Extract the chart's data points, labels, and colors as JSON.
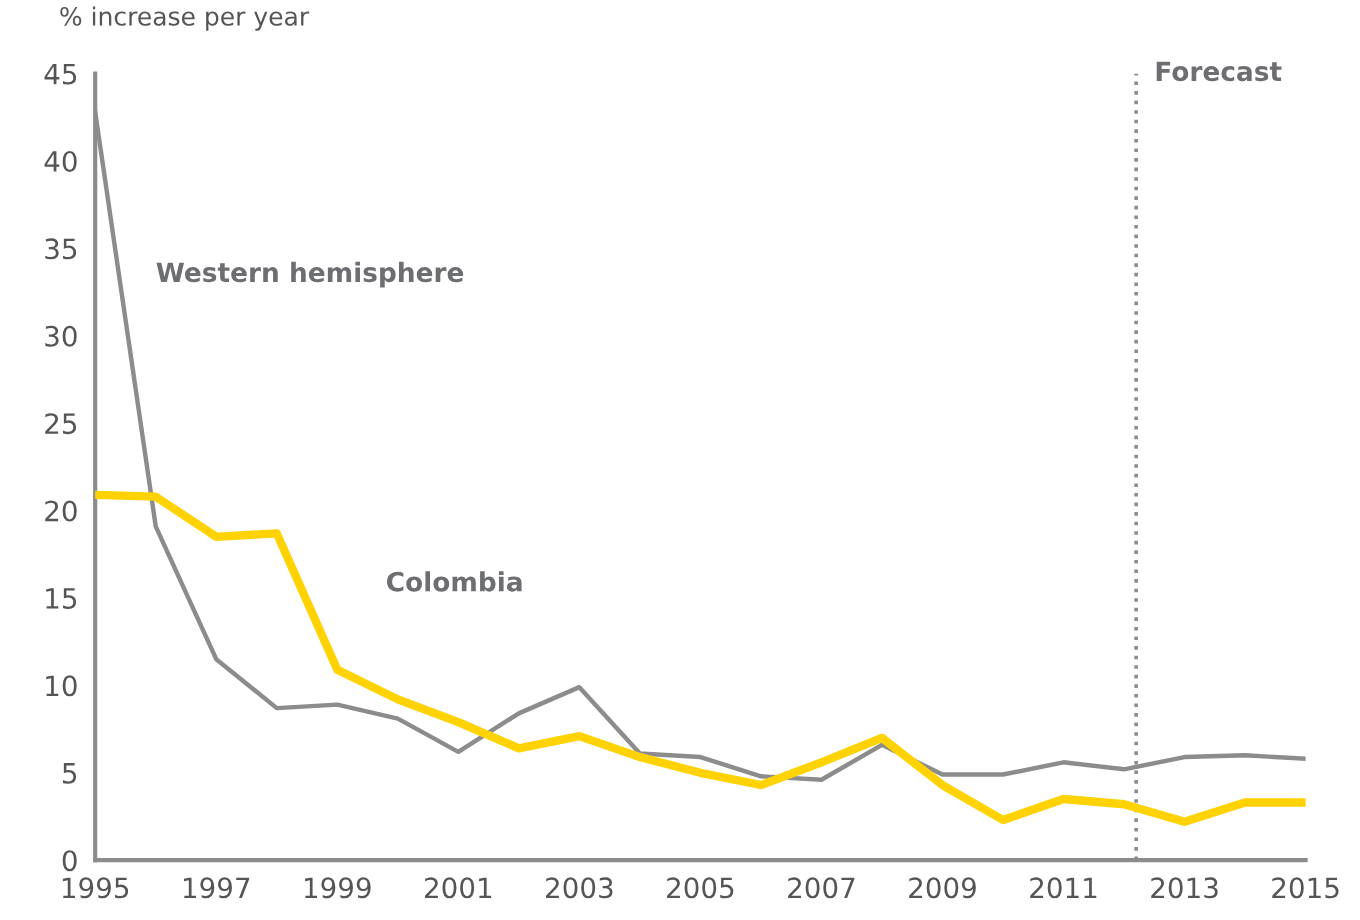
{
  "chart_data": {
    "type": "line",
    "ylabel": "% increase per year",
    "x": [
      1995,
      1996,
      1997,
      1998,
      1999,
      2000,
      2001,
      2002,
      2003,
      2004,
      2005,
      2006,
      2007,
      2008,
      2009,
      2010,
      2011,
      2012,
      2013,
      2014,
      2015
    ],
    "series": [
      {
        "name": "Western hemisphere",
        "color": "#8c8c8c",
        "values": [
          42.8,
          19.1,
          11.5,
          8.7,
          8.9,
          8.1,
          6.2,
          8.4,
          9.9,
          6.1,
          5.9,
          4.8,
          4.6,
          6.6,
          4.9,
          4.9,
          5.6,
          5.2,
          5.9,
          6.0,
          5.8
        ]
      },
      {
        "name": "Colombia",
        "color": "#ffd200",
        "values": [
          20.9,
          20.8,
          18.5,
          18.7,
          10.9,
          9.2,
          7.9,
          6.4,
          7.1,
          5.9,
          5.0,
          4.3,
          5.6,
          7.0,
          4.3,
          2.3,
          3.5,
          3.2,
          2.2,
          3.3,
          3.3
        ]
      }
    ],
    "xlim": [
      1995,
      2015
    ],
    "xticks": [
      1995,
      1997,
      1999,
      2001,
      2003,
      2005,
      2007,
      2009,
      2011,
      2013,
      2015
    ],
    "ylim": [
      0,
      45
    ],
    "yticks": [
      0,
      5,
      10,
      15,
      20,
      25,
      30,
      35,
      40,
      45
    ],
    "ref_lines": [
      {
        "axis": "x",
        "value": 2012.2,
        "label": "Forecast",
        "color": "#8c8c8c",
        "line_style": "dotted"
      }
    ],
    "grid": false,
    "legend": false,
    "marker": "none",
    "line_style": "solid"
  }
}
